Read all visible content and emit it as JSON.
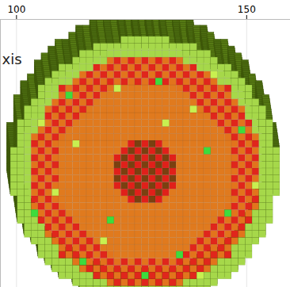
{
  "chart_data": {
    "type": "voxel",
    "ylabel": "xis",
    "xlim": [
      96.5,
      159.5
    ],
    "xticks": [
      100,
      150
    ],
    "ylim": [
      96,
      154
    ],
    "grid": true,
    "tick_labels": "x",
    "center": [
      128,
      121
    ],
    "cell_size": 1.5,
    "layers": [
      {
        "color": "#a6d84a",
        "r_inner": 25.5,
        "r_outer": 29
      },
      {
        "colors": [
          "#e0261c",
          "#e2741c"
        ],
        "r_inner": 19,
        "r_outer": 25.5
      },
      {
        "color": "#e07a1e",
        "r_inner": 7.5,
        "r_outer": 19
      },
      {
        "colors": [
          "#e0201a",
          "#7a4010"
        ],
        "r_inner": 0,
        "r_outer": 7.5
      }
    ],
    "specks": [
      {
        "x": 141.5,
        "y": 125.5,
        "color": "#3ddc3d"
      },
      {
        "x": 113,
        "y": 127,
        "color": "#c8f050"
      },
      {
        "x": 135.5,
        "y": 103,
        "color": "#3ddc3d"
      },
      {
        "x": 119,
        "y": 106,
        "color": "#c8f050"
      },
      {
        "x": 146,
        "y": 112,
        "color": "#3ddc3d"
      },
      {
        "x": 108.5,
        "y": 116.5,
        "color": "#c8f050"
      },
      {
        "x": 131,
        "y": 140.5,
        "color": "#3ddc3d"
      },
      {
        "x": 122,
        "y": 139,
        "color": "#c8f050"
      },
      {
        "x": 149,
        "y": 130,
        "color": "#3ddc3d"
      },
      {
        "x": 105.5,
        "y": 131.5,
        "color": "#c8f050"
      },
      {
        "x": 138.5,
        "y": 134.5,
        "color": "#c8f050"
      },
      {
        "x": 114.5,
        "y": 101.5,
        "color": "#3ddc3d"
      },
      {
        "x": 152,
        "y": 118,
        "color": "#c8f050"
      },
      {
        "x": 128,
        "y": 98.5,
        "color": "#3ddc3d"
      },
      {
        "x": 104,
        "y": 112,
        "color": "#3ddc3d"
      },
      {
        "x": 143,
        "y": 142,
        "color": "#c8f050"
      },
      {
        "x": 111.5,
        "y": 137.5,
        "color": "#3ddc3d"
      },
      {
        "x": 140,
        "y": 98.5,
        "color": "#c8f050"
      },
      {
        "x": 132.5,
        "y": 131.5,
        "color": "#c8f050"
      },
      {
        "x": 120.5,
        "y": 110.5,
        "color": "#3ddc3d"
      }
    ]
  }
}
